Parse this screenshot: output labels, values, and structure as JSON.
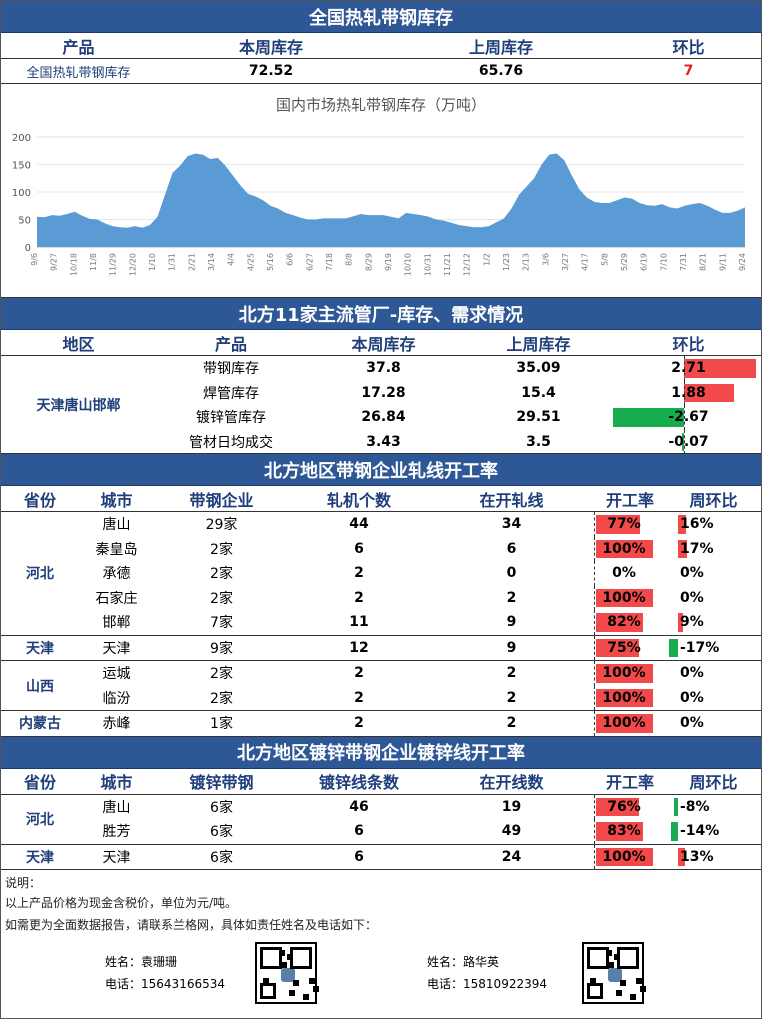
{
  "section1": {
    "title": "全国热轧带钢库存",
    "headers": [
      "产品",
      "本周库存",
      "上周库存",
      "环比"
    ],
    "row": {
      "product": "全国热轧带钢库存",
      "this_week": "72.52",
      "last_week": "65.76",
      "change": "7"
    }
  },
  "chart_data": {
    "type": "area",
    "title": "国内市场热轧带钢库存（万吨）",
    "ylim": [
      0,
      200
    ],
    "yticks": [
      "0",
      "50",
      "100",
      "150",
      "200"
    ],
    "color": "#5b9bd5",
    "x_labels": [
      "9/6",
      "9/27",
      "10/18",
      "11/8",
      "11/29",
      "12/20",
      "1/10",
      "1/31",
      "2/21",
      "3/14",
      "4/4",
      "4/25",
      "5/16",
      "6/6",
      "6/27",
      "7/18",
      "8/8",
      "8/29",
      "9/19",
      "10/10",
      "10/31",
      "11/21",
      "12/12",
      "1/2",
      "1/23",
      "2/13",
      "3/6",
      "3/27",
      "4/17",
      "5/8",
      "5/29",
      "6/19",
      "7/10",
      "7/31",
      "8/21",
      "9/11",
      "9/24"
    ],
    "values": [
      55,
      54,
      58,
      57,
      60,
      64,
      57,
      51,
      50,
      43,
      38,
      36,
      35,
      38,
      35,
      40,
      55,
      95,
      135,
      148,
      165,
      170,
      168,
      160,
      162,
      148,
      130,
      112,
      97,
      92,
      85,
      75,
      70,
      62,
      58,
      53,
      50,
      50,
      52,
      52,
      52,
      52,
      56,
      60,
      58,
      58,
      58,
      55,
      52,
      62,
      60,
      58,
      55,
      50,
      48,
      44,
      40,
      38,
      36,
      36,
      38,
      45,
      52,
      70,
      95,
      110,
      125,
      150,
      168,
      170,
      158,
      130,
      105,
      90,
      82,
      80,
      80,
      85,
      90,
      88,
      80,
      76,
      75,
      78,
      72,
      70,
      75,
      78,
      80,
      75,
      68,
      62,
      62,
      66,
      72
    ]
  },
  "section2": {
    "title": "北方11家主流管厂-库存、需求情况",
    "headers": [
      "地区",
      "产品",
      "本周库存",
      "上周库存",
      "环比"
    ],
    "region": "天津唐山邯郸",
    "rows": [
      {
        "product": "带钢库存",
        "this_week": "37.8",
        "last_week": "35.09",
        "change": "2.71",
        "value": 2.71
      },
      {
        "product": "焊管库存",
        "this_week": "17.28",
        "last_week": "15.4",
        "change": "1.88",
        "value": 1.88
      },
      {
        "product": "镀锌管库存",
        "this_week": "26.84",
        "last_week": "29.51",
        "change": "-2.67",
        "value": -2.67
      },
      {
        "product": "管材日均成交",
        "this_week": "3.43",
        "last_week": "3.5",
        "change": "-0.07",
        "value": -0.07
      }
    ]
  },
  "section3": {
    "title": "北方地区带钢企业轧线开工率",
    "headers": [
      "省份",
      "城市",
      "带钢企业",
      "轧机个数",
      "在开轧线",
      "开工率",
      "周环比"
    ],
    "groups": [
      {
        "province": "河北",
        "rows": [
          {
            "city": "唐山",
            "firms": "29家",
            "mills": "44",
            "open": "34",
            "rate": "77%",
            "rate_v": 77,
            "wow": "16%",
            "wow_v": 16
          },
          {
            "city": "秦皇岛",
            "firms": "2家",
            "mills": "6",
            "open": "6",
            "rate": "100%",
            "rate_v": 100,
            "wow": "17%",
            "wow_v": 17
          },
          {
            "city": "承德",
            "firms": "2家",
            "mills": "2",
            "open": "0",
            "rate": "0%",
            "rate_v": 0,
            "wow": "0%",
            "wow_v": 0
          },
          {
            "city": "石家庄",
            "firms": "2家",
            "mills": "2",
            "open": "2",
            "rate": "100%",
            "rate_v": 100,
            "wow": "0%",
            "wow_v": 0
          },
          {
            "city": "邯郸",
            "firms": "7家",
            "mills": "11",
            "open": "9",
            "rate": "82%",
            "rate_v": 82,
            "wow": "9%",
            "wow_v": 9
          }
        ]
      },
      {
        "province": "天津",
        "rows": [
          {
            "city": "天津",
            "firms": "9家",
            "mills": "12",
            "open": "9",
            "rate": "75%",
            "rate_v": 75,
            "wow": "-17%",
            "wow_v": -17
          }
        ]
      },
      {
        "province": "山西",
        "rows": [
          {
            "city": "运城",
            "firms": "2家",
            "mills": "2",
            "open": "2",
            "rate": "100%",
            "rate_v": 100,
            "wow": "0%",
            "wow_v": 0
          },
          {
            "city": "临汾",
            "firms": "2家",
            "mills": "2",
            "open": "2",
            "rate": "100%",
            "rate_v": 100,
            "wow": "0%",
            "wow_v": 0
          }
        ]
      },
      {
        "province": "内蒙古",
        "rows": [
          {
            "city": "赤峰",
            "firms": "1家",
            "mills": "2",
            "open": "2",
            "rate": "100%",
            "rate_v": 100,
            "wow": "0%",
            "wow_v": 0
          }
        ]
      }
    ]
  },
  "section4": {
    "title": "北方地区镀锌带钢企业镀锌线开工率",
    "headers": [
      "省份",
      "城市",
      "镀锌带钢",
      "镀锌线条数",
      "在开线数",
      "开工率",
      "周环比"
    ],
    "groups": [
      {
        "province": "河北",
        "rows": [
          {
            "city": "唐山",
            "firms": "6家",
            "mills": "46",
            "open": "19",
            "rate": "76%",
            "rate_v": 76,
            "wow": "-8%",
            "wow_v": -8
          },
          {
            "city": "胜芳",
            "firms": "6家",
            "mills": "6",
            "open": "49",
            "rate": "83%",
            "rate_v": 83,
            "wow": "-14%",
            "wow_v": -14
          }
        ]
      },
      {
        "province": "天津",
        "rows": [
          {
            "city": "天津",
            "firms": "6家",
            "mills": "6",
            "open": "24",
            "rate": "100%",
            "rate_v": 100,
            "wow": "13%",
            "wow_v": 13
          }
        ]
      }
    ]
  },
  "footer": {
    "label": "说明：",
    "note1": "以上产品价格为现金含税价，单位为元/吨。",
    "note2": "如需更为全面数据报告，请联系兰格网，具体如责任姓名及电话如下：",
    "contacts": [
      {
        "name_label": "姓名：",
        "name": "袁珊珊",
        "phone_label": "电话：",
        "phone": "15643166534"
      },
      {
        "name_label": "姓名：",
        "name": "路华英",
        "phone_label": "电话：",
        "phone": "15810922394"
      }
    ]
  }
}
